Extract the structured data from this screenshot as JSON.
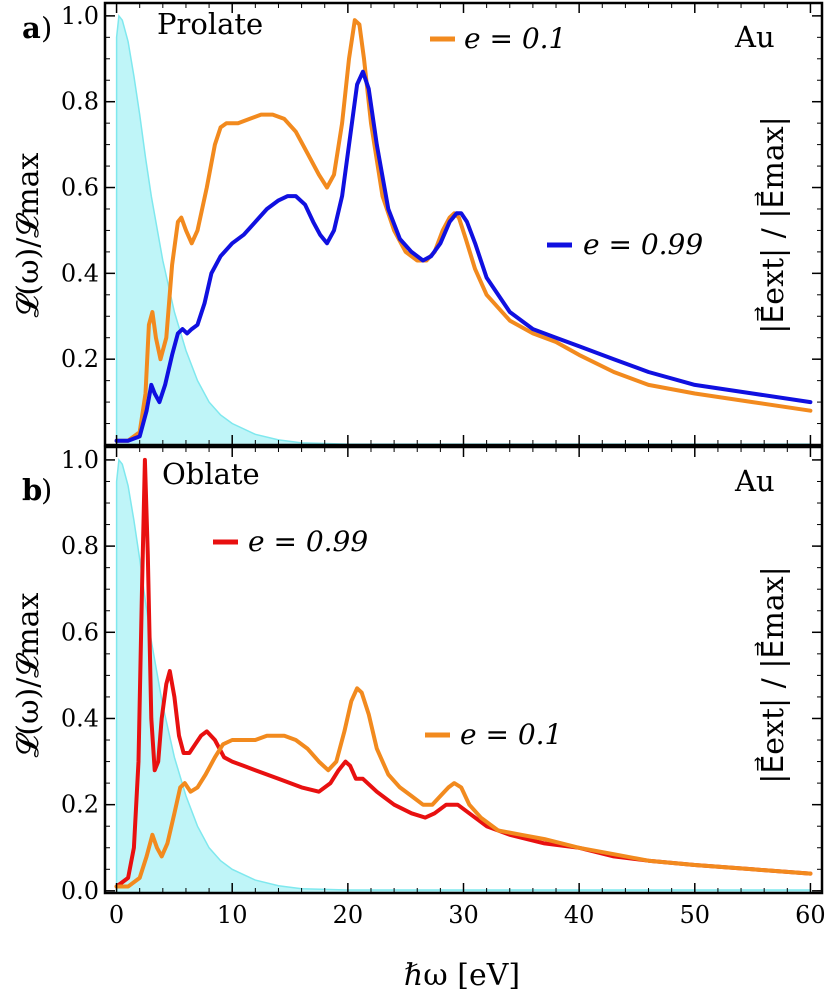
{
  "chart_data": [
    {
      "type": "line",
      "panel_letter": "a",
      "panel_paren": ")",
      "subtitle": "Prolate",
      "material": "Au",
      "ylabel": "𝓛(ω)/𝓛max",
      "ylabel_right": "|E⃗ext| / |E⃗max|",
      "xlim": [
        -1,
        61
      ],
      "ylim": [
        0,
        1.03
      ],
      "xticks": [],
      "yticks": [
        0.2,
        0.4,
        0.6,
        0.8,
        1.0
      ],
      "ytick_labels": [
        "0.2",
        "0.4",
        "0.6",
        "0.8",
        "1.0"
      ],
      "legend": [
        {
          "series": 0,
          "label": "e = 0.1",
          "position": "top-center"
        },
        {
          "series": 1,
          "label": "e = 0.99",
          "position": "right"
        }
      ],
      "background_field": {
        "color": "#aaf2f5",
        "x": [
          0,
          0.2,
          0.5,
          1,
          1.5,
          2,
          2.5,
          3,
          4,
          5,
          6,
          7,
          8,
          9,
          10,
          12,
          14,
          16,
          20,
          60
        ],
        "y": [
          0.95,
          1.0,
          0.99,
          0.94,
          0.86,
          0.77,
          0.67,
          0.58,
          0.43,
          0.31,
          0.22,
          0.15,
          0.1,
          0.07,
          0.05,
          0.025,
          0.012,
          0.005,
          0.002,
          0.002
        ]
      },
      "series": [
        {
          "name": "e = 0.1",
          "color": "#f28a1e",
          "x": [
            0,
            1,
            2,
            2.5,
            2.8,
            3.1,
            3.4,
            3.8,
            4.3,
            4.8,
            5.3,
            5.6,
            6,
            6.5,
            7,
            7.8,
            8.5,
            9,
            9.5,
            10.5,
            11.5,
            12.5,
            13.5,
            14.5,
            15.5,
            16.5,
            17.5,
            18.2,
            18.8,
            19.5,
            20.1,
            20.6,
            21,
            21.4,
            22,
            23,
            24,
            25,
            26,
            26.8,
            27.5,
            28.2,
            28.8,
            29.2,
            29.6,
            30.2,
            31,
            32,
            34,
            36,
            38,
            40,
            43,
            46,
            50,
            55,
            60
          ],
          "y": [
            0.01,
            0.01,
            0.03,
            0.12,
            0.28,
            0.31,
            0.25,
            0.2,
            0.25,
            0.42,
            0.52,
            0.53,
            0.5,
            0.47,
            0.5,
            0.6,
            0.7,
            0.74,
            0.75,
            0.75,
            0.76,
            0.77,
            0.77,
            0.76,
            0.73,
            0.68,
            0.63,
            0.6,
            0.63,
            0.75,
            0.9,
            0.99,
            0.98,
            0.9,
            0.75,
            0.58,
            0.5,
            0.45,
            0.43,
            0.43,
            0.45,
            0.5,
            0.53,
            0.54,
            0.53,
            0.48,
            0.41,
            0.35,
            0.29,
            0.26,
            0.24,
            0.21,
            0.17,
            0.14,
            0.12,
            0.1,
            0.08
          ]
        },
        {
          "name": "e = 0.99",
          "color": "#1010e0",
          "x": [
            0,
            1,
            2,
            2.6,
            3,
            3.3,
            3.7,
            4.2,
            4.8,
            5.3,
            5.7,
            6.1,
            6.5,
            7,
            7.6,
            8.2,
            9,
            10,
            11,
            12,
            13,
            14,
            14.8,
            15.5,
            16.3,
            17,
            17.6,
            18.2,
            18.8,
            19.5,
            20.2,
            20.8,
            21.3,
            21.8,
            22.5,
            23.5,
            24.5,
            25.5,
            26.5,
            27.2,
            28,
            28.8,
            29.4,
            29.8,
            30.3,
            31,
            32,
            34,
            36,
            38,
            40,
            43,
            46,
            50,
            55,
            60
          ],
          "y": [
            0.01,
            0.01,
            0.02,
            0.08,
            0.14,
            0.12,
            0.1,
            0.14,
            0.21,
            0.26,
            0.27,
            0.26,
            0.27,
            0.28,
            0.33,
            0.4,
            0.44,
            0.47,
            0.49,
            0.52,
            0.55,
            0.57,
            0.58,
            0.58,
            0.56,
            0.52,
            0.49,
            0.47,
            0.5,
            0.58,
            0.72,
            0.84,
            0.87,
            0.83,
            0.7,
            0.55,
            0.48,
            0.45,
            0.43,
            0.44,
            0.47,
            0.52,
            0.54,
            0.54,
            0.52,
            0.47,
            0.39,
            0.31,
            0.27,
            0.25,
            0.23,
            0.2,
            0.17,
            0.14,
            0.12,
            0.1
          ]
        }
      ]
    },
    {
      "type": "line",
      "panel_letter": "b",
      "panel_paren": ")",
      "subtitle": "Oblate",
      "material": "Au",
      "ylabel": "𝓛(ω)/𝓛max",
      "ylabel_right": "|E⃗ext| / |E⃗max|",
      "xlabel": "ℏω [eV]",
      "xlim": [
        -1,
        61
      ],
      "ylim": [
        -0.005,
        1.03
      ],
      "xticks": [
        0,
        10,
        20,
        30,
        40,
        50,
        60
      ],
      "xtick_labels": [
        "0",
        "10",
        "20",
        "30",
        "40",
        "50",
        "60"
      ],
      "yticks": [
        0.0,
        0.2,
        0.4,
        0.6,
        0.8,
        1.0
      ],
      "ytick_labels": [
        "0.0",
        "0.2",
        "0.4",
        "0.6",
        "0.8",
        "1.0"
      ],
      "legend": [
        {
          "series": 0,
          "label": "e = 0.99",
          "position": "top-left"
        },
        {
          "series": 1,
          "label": "e = 0.1",
          "position": "center-right"
        }
      ],
      "background_field": {
        "color": "#aaf2f5",
        "x": [
          0,
          0.2,
          0.5,
          1,
          1.5,
          2,
          2.5,
          3,
          4,
          5,
          6,
          7,
          8,
          9,
          10,
          12,
          14,
          16,
          20,
          60
        ],
        "y": [
          0.95,
          1.0,
          0.99,
          0.94,
          0.86,
          0.77,
          0.67,
          0.58,
          0.43,
          0.31,
          0.22,
          0.15,
          0.1,
          0.07,
          0.05,
          0.025,
          0.012,
          0.005,
          0.002,
          0.002
        ]
      },
      "series": [
        {
          "name": "e = 0.99",
          "color": "#e81010",
          "x": [
            0,
            1,
            1.5,
            1.9,
            2.2,
            2.45,
            2.7,
            3,
            3.3,
            3.6,
            3.9,
            4.3,
            4.6,
            5,
            5.4,
            5.8,
            6.3,
            6.8,
            7.3,
            7.8,
            8.5,
            9.3,
            10,
            11,
            12,
            14,
            16,
            17.5,
            18.5,
            19.2,
            19.8,
            20.2,
            20.7,
            21.3,
            22.5,
            24,
            25.5,
            26.7,
            27.5,
            28.5,
            29.5,
            30.5,
            32,
            34,
            37,
            40,
            43,
            46,
            50,
            55,
            60
          ],
          "y": [
            0.01,
            0.03,
            0.1,
            0.3,
            0.7,
            1.0,
            0.78,
            0.4,
            0.28,
            0.3,
            0.4,
            0.48,
            0.51,
            0.45,
            0.36,
            0.32,
            0.32,
            0.34,
            0.36,
            0.37,
            0.35,
            0.31,
            0.3,
            0.29,
            0.28,
            0.26,
            0.24,
            0.23,
            0.25,
            0.28,
            0.3,
            0.29,
            0.26,
            0.26,
            0.23,
            0.2,
            0.18,
            0.17,
            0.18,
            0.2,
            0.2,
            0.18,
            0.15,
            0.13,
            0.11,
            0.1,
            0.08,
            0.07,
            0.06,
            0.05,
            0.04
          ]
        },
        {
          "name": "e = 0.1",
          "color": "#f28a1e",
          "x": [
            0,
            1,
            2,
            2.6,
            3.1,
            3.5,
            3.9,
            4.4,
            5,
            5.5,
            5.9,
            6.4,
            7,
            7.7,
            8.5,
            9.2,
            10,
            11,
            12,
            13,
            13.8,
            14.5,
            15.5,
            16.5,
            17.5,
            18.3,
            19,
            19.7,
            20.3,
            20.8,
            21.2,
            21.8,
            22.5,
            23.5,
            24.5,
            25.5,
            26.5,
            27.3,
            28,
            28.7,
            29.2,
            29.8,
            30.5,
            31.5,
            33,
            35,
            37,
            40,
            43,
            46,
            50,
            55,
            60
          ],
          "y": [
            0.01,
            0.01,
            0.03,
            0.08,
            0.13,
            0.1,
            0.08,
            0.11,
            0.18,
            0.24,
            0.25,
            0.23,
            0.24,
            0.27,
            0.31,
            0.34,
            0.35,
            0.35,
            0.35,
            0.36,
            0.36,
            0.36,
            0.35,
            0.33,
            0.3,
            0.28,
            0.3,
            0.37,
            0.44,
            0.47,
            0.46,
            0.41,
            0.33,
            0.27,
            0.24,
            0.22,
            0.2,
            0.2,
            0.22,
            0.24,
            0.25,
            0.24,
            0.2,
            0.17,
            0.14,
            0.13,
            0.12,
            0.1,
            0.085,
            0.07,
            0.06,
            0.05,
            0.04
          ]
        }
      ]
    }
  ]
}
